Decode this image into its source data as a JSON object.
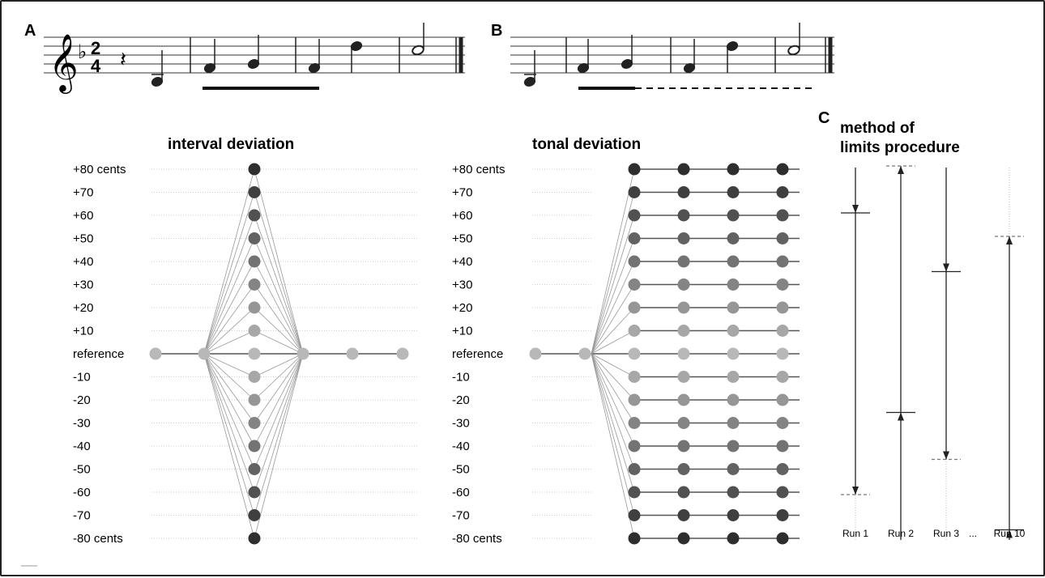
{
  "figure": {
    "panel_a": {
      "letter": "A",
      "time_signature": {
        "top": "2",
        "bottom": "4"
      },
      "key_flat": "♭",
      "clef": "𝄞",
      "rest": "𝄽"
    },
    "panel_b": {
      "letter": "B"
    },
    "panel_c": {
      "letter": "C",
      "title_line1": "method of",
      "title_line2": "limits procedure",
      "runs": [
        {
          "label": "Run 1",
          "direction": "down",
          "response_at": 0.6,
          "end_at": -0.6
        },
        {
          "label": "Run 2",
          "direction": "up",
          "response_at": -0.25,
          "end_at": 0.8
        },
        {
          "label": "Run 3",
          "direction": "down",
          "response_at": 0.35,
          "end_at": -0.45
        },
        {
          "label": "Run 10",
          "direction": "up",
          "response_at": -0.75,
          "end_at": 0.5
        }
      ],
      "ellipsis": "..."
    },
    "interval_deviation": {
      "title": "interval deviation",
      "levels": [
        "+80 cents",
        "+70",
        "+60",
        "+50",
        "+40",
        "+30",
        "+20",
        "+10",
        "reference",
        "-10",
        "-20",
        "-30",
        "-40",
        "-50",
        "-60",
        "-70",
        "-80 cents"
      ]
    },
    "tonal_deviation": {
      "title": "tonal deviation",
      "levels": [
        "+80 cents",
        "+70",
        "+60",
        "+50",
        "+40",
        "+30",
        "+20",
        "+10",
        "reference",
        "-10",
        "-20",
        "-30",
        "-40",
        "-50",
        "-60",
        "-70",
        "-80 cents"
      ]
    },
    "colors": {
      "dot_reference": "#b8b8b8",
      "dot_extreme": "#2e2e2e",
      "line": "#555555",
      "grid": "#cccccc"
    }
  }
}
